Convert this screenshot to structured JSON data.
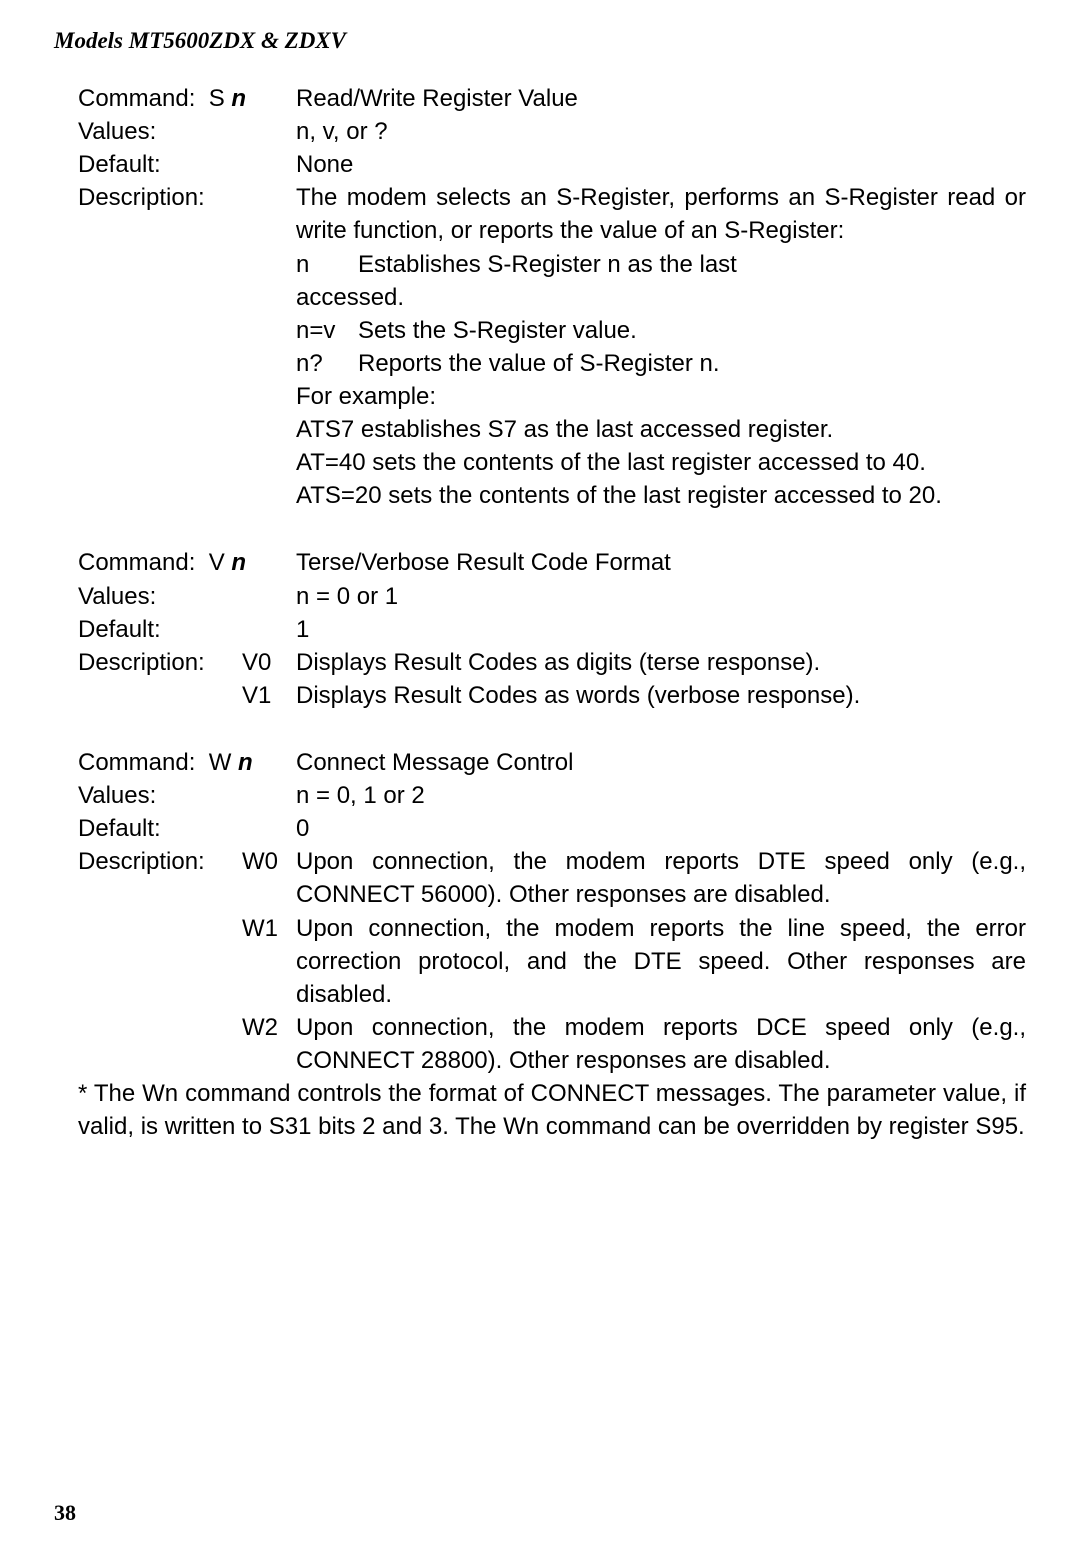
{
  "header": "Models MT5600ZDX & ZDXV",
  "page_number": "38",
  "blocks": [
    {
      "command_label": "Command:",
      "command_code": "S",
      "command_param": "n",
      "command_title": "Read/Write Register Value",
      "values_label": "Values:",
      "values_text": "n, v, or ?",
      "default_label": "Default:",
      "default_text": "None",
      "description_label": "Description:",
      "description_intro": "The modem selects an S-Register, performs an S-Register read or write function, or reports the value of an S-Register:",
      "sub_items": [
        {
          "key": "n",
          "text_pre": "Establishes S-Register n as the last",
          "text_after": "accessed."
        },
        {
          "key": "n=v",
          "text": "Sets the S-Register value."
        },
        {
          "key": "n?",
          "text": "Reports the value of S-Register n."
        }
      ],
      "example_label": "For example:",
      "example_lines": [
        "ATS7 establishes S7 as the last accessed register.",
        "AT=40 sets the contents of the last register accessed to 40.",
        "ATS=20 sets the contents of the last register access­ed to 20."
      ]
    },
    {
      "command_label": "Command:",
      "command_code": "V",
      "command_param": "n",
      "command_title": "Terse/Verbose Result Code Format",
      "values_label": "Values:",
      "values_text": "n = 0 or 1",
      "default_label": "Default:",
      "default_text": "1",
      "description_label": "Description:",
      "desc_rows": [
        {
          "sub": "V0",
          "text": "Displays Result Codes as digits (terse response)."
        },
        {
          "sub": "V1",
          "text": "Displays Result Codes as words (verbose response)."
        }
      ]
    },
    {
      "command_label": "Command:",
      "command_code": "W",
      "command_param": "n",
      "command_title": "Connect Message Control",
      "values_label": "Values:",
      "values_text": "n = 0, 1 or 2",
      "default_label": "Default:",
      "default_text": "0",
      "description_label": "Description:",
      "desc_rows": [
        {
          "sub": "W0",
          "text": "Upon connection, the modem reports DTE speed only (e.g., CONNECT 56000). Other responses are disabled."
        },
        {
          "sub": "W1",
          "text": "Upon connection, the modem reports the line speed, the error correction protocol, and the DTE speed.  Other responses are disabled."
        },
        {
          "sub": "W2",
          "text": "Upon connection, the modem reports DCE speed only (e.g., CONNECT 28800). Other responses are disabled."
        }
      ]
    }
  ],
  "footnote": "* The Wn command controls the format of CONNECT messages.  The parameter value, if valid, is written to S31 bits 2 and 3.  The Wn command can be overridden by register S95."
}
